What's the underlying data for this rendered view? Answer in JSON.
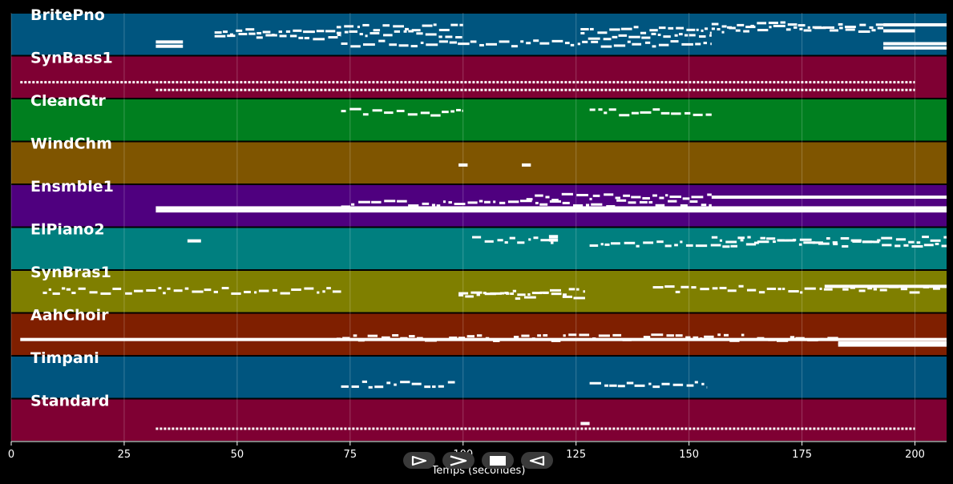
{
  "chart_data": {
    "type": "piano-roll",
    "xlabel": "Temps (secondes)",
    "xlim": [
      0,
      207
    ],
    "xticks": [
      0,
      25,
      50,
      75,
      100,
      125,
      150,
      175,
      200
    ],
    "tick_labels": [
      "0",
      "25",
      "50",
      "75",
      "100",
      "125",
      "150",
      "175",
      "200"
    ],
    "grid": true,
    "tracks": [
      {
        "name": "BritePno",
        "color": "#00557f",
        "notes": [
          {
            "start": 32,
            "end": 38,
            "pitch": 0.68
          },
          {
            "start": 32,
            "end": 38,
            "pitch": 0.78
          },
          {
            "start": 45,
            "end": 73,
            "pitch": 0.45,
            "dense": true
          },
          {
            "start": 45,
            "end": 73,
            "pitch": 0.55,
            "dense": true
          },
          {
            "start": 72,
            "end": 100,
            "pitch": 0.35,
            "dense": true
          },
          {
            "start": 72,
            "end": 100,
            "pitch": 0.5,
            "dense": true
          },
          {
            "start": 73,
            "end": 155,
            "pitch": 0.72,
            "dense": true
          },
          {
            "start": 126,
            "end": 155,
            "pitch": 0.4,
            "dense": true
          },
          {
            "start": 126,
            "end": 155,
            "pitch": 0.55,
            "dense": true
          },
          {
            "start": 155,
            "end": 193,
            "pitch": 0.3,
            "dense": true
          },
          {
            "start": 155,
            "end": 193,
            "pitch": 0.38,
            "dense": true
          },
          {
            "start": 193,
            "end": 200,
            "pitch": 0.42
          },
          {
            "start": 193,
            "end": 207,
            "pitch": 0.28
          },
          {
            "start": 193,
            "end": 207,
            "pitch": 0.72
          },
          {
            "start": 193,
            "end": 207,
            "pitch": 0.82
          }
        ]
      },
      {
        "name": "SynBass1",
        "color": "#7f0033",
        "notes": [
          {
            "start": 2,
            "end": 32,
            "pitch": 0.62,
            "dotted": true
          },
          {
            "start": 32,
            "end": 200,
            "pitch": 0.8,
            "dotted": true
          },
          {
            "start": 32,
            "end": 200,
            "pitch": 0.62,
            "dotted": true
          }
        ]
      },
      {
        "name": "CleanGtr",
        "color": "#007f1f",
        "notes": [
          {
            "start": 73,
            "end": 100,
            "pitch": 0.32,
            "dense": true
          },
          {
            "start": 128,
            "end": 155,
            "pitch": 0.32,
            "dense": true
          }
        ]
      },
      {
        "name": "WindChm",
        "color": "#7f5500",
        "notes": [
          {
            "start": 99,
            "end": 101,
            "pitch": 0.55
          },
          {
            "start": 113,
            "end": 115,
            "pitch": 0.55
          }
        ]
      },
      {
        "name": "Ensmble1",
        "color": "#4f007f",
        "notes": [
          {
            "start": 32,
            "end": 207,
            "pitch": 0.55
          },
          {
            "start": 32,
            "end": 207,
            "pitch": 0.62
          },
          {
            "start": 73,
            "end": 155,
            "pitch": 0.45,
            "dense": true
          },
          {
            "start": 114,
            "end": 155,
            "pitch": 0.3,
            "dense": true
          },
          {
            "start": 155,
            "end": 207,
            "pitch": 0.3
          }
        ]
      },
      {
        "name": "ElPiano2",
        "color": "#007f7f",
        "notes": [
          {
            "start": 39,
            "end": 42,
            "pitch": 0.32
          },
          {
            "start": 102,
            "end": 120,
            "pitch": 0.3,
            "dense": true
          },
          {
            "start": 119,
            "end": 121,
            "pitch": 0.22
          },
          {
            "start": 119,
            "end": 121,
            "pitch": 0.3
          },
          {
            "start": 128,
            "end": 207,
            "pitch": 0.38,
            "dense": true
          },
          {
            "start": 155,
            "end": 207,
            "pitch": 0.3,
            "dense": true
          }
        ]
      },
      {
        "name": "SynBras1",
        "color": "#7f7f00",
        "notes": [
          {
            "start": 7,
            "end": 73,
            "pitch": 0.48,
            "dense": true
          },
          {
            "start": 99,
            "end": 127,
            "pitch": 0.52,
            "dense": true
          },
          {
            "start": 99,
            "end": 127,
            "pitch": 0.6,
            "dense": true
          },
          {
            "start": 142,
            "end": 207,
            "pitch": 0.45,
            "dense": true
          },
          {
            "start": 180,
            "end": 207,
            "pitch": 0.38
          }
        ]
      },
      {
        "name": "AahChoir",
        "color": "#7f1f00",
        "notes": [
          {
            "start": 2,
            "end": 207,
            "pitch": 0.62
          },
          {
            "start": 72,
            "end": 183,
            "pitch": 0.58,
            "dense": true
          },
          {
            "start": 183,
            "end": 207,
            "pitch": 0.7
          },
          {
            "start": 183,
            "end": 207,
            "pitch": 0.75
          }
        ]
      },
      {
        "name": "Timpani",
        "color": "#00557f",
        "notes": [
          {
            "start": 73,
            "end": 99,
            "pitch": 0.68,
            "dense": true
          },
          {
            "start": 128,
            "end": 154,
            "pitch": 0.68,
            "dense": true
          }
        ]
      },
      {
        "name": "Standard",
        "color": "#7f0033",
        "notes": [
          {
            "start": 32,
            "end": 200,
            "pitch": 0.7,
            "dotted": true
          },
          {
            "start": 126,
            "end": 128,
            "pitch": 0.58
          }
        ]
      }
    ]
  },
  "controls": {
    "items": [
      {
        "name": "play-button",
        "icon": "play-icon"
      },
      {
        "name": "fast-forward-button",
        "icon": "fast-forward-icon"
      },
      {
        "name": "stop-button",
        "icon": "stop-icon"
      },
      {
        "name": "rewind-button",
        "icon": "rewind-icon"
      }
    ]
  }
}
